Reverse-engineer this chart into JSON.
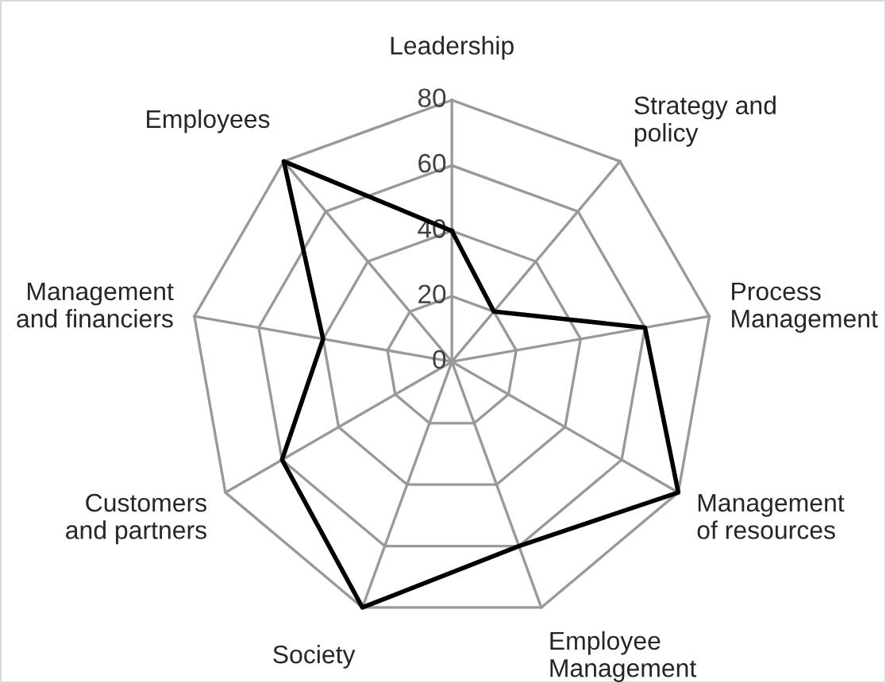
{
  "chart_data": {
    "type": "radar",
    "categories": [
      "Leadership",
      "Strategy and\npolicy",
      "Process\nManagement",
      "Management\nof resources",
      "Employee\nManagement",
      "Society",
      "Customers\nand partners",
      "Management\nand financiers",
      "Employees"
    ],
    "series": [
      {
        "color": "#000000",
        "values": [
          40,
          20,
          60,
          80,
          60,
          80,
          60,
          40,
          80
        ]
      }
    ],
    "ylim": [
      0,
      80
    ],
    "yticks": [
      0,
      20,
      40,
      60,
      80
    ],
    "grid": true,
    "marker": "none",
    "line_style": "solid"
  }
}
